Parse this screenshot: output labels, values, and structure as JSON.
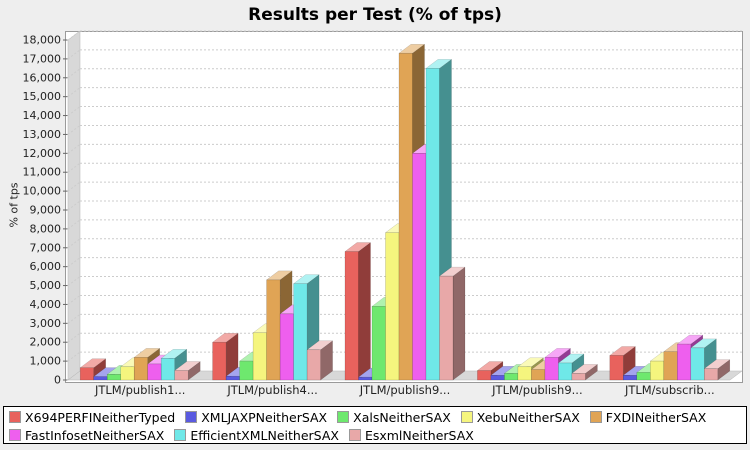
{
  "chart_data": {
    "type": "bar",
    "style_3d": true,
    "title": "Results per Test (% of tps)",
    "xlabel": "",
    "ylabel": "% of tps",
    "ylim": [
      0,
      18000
    ],
    "ytick_step": 1000,
    "grid": true,
    "legend_position": "bottom",
    "legend_rows": [
      5,
      3
    ],
    "background": "#eeeeee",
    "plot_background": "#ffffff",
    "wall_color": "#d8d8d8",
    "grid_color": "#cccccc",
    "categories": [
      "JTLM/publish1...",
      "JTLM/publish4...",
      "JTLM/publish9...",
      "JTLM/publish9...",
      "JTLM/subscrib..."
    ],
    "series": [
      {
        "name": "X694PERFINeitherTyped",
        "color": "#e8625d",
        "values": [
          650,
          2000,
          6800,
          500,
          1300
        ]
      },
      {
        "name": "XMLJAXPNeitherSAX",
        "color": "#5a5ae0",
        "values": [
          180,
          200,
          150,
          250,
          250
        ]
      },
      {
        "name": "XalsNeitherSAX",
        "color": "#6ee86e",
        "values": [
          300,
          1000,
          3900,
          350,
          400
        ]
      },
      {
        "name": "XebuNeitherSAX",
        "color": "#f5f57e",
        "values": [
          700,
          2500,
          7800,
          700,
          1000
        ]
      },
      {
        "name": "FXDINeitherSAX",
        "color": "#e0a455",
        "values": [
          1200,
          5300,
          17300,
          550,
          1500
        ]
      },
      {
        "name": "FastInfosetNeitherSAX",
        "color": "#ee5fee",
        "values": [
          850,
          3500,
          12000,
          1200,
          1900
        ]
      },
      {
        "name": "EfficientXMLNeitherSAX",
        "color": "#6fe8e8",
        "values": [
          1150,
          5100,
          16500,
          900,
          1700
        ]
      },
      {
        "name": "EsxmlNeitherSAX",
        "color": "#e8a8a8",
        "values": [
          500,
          1600,
          5500,
          350,
          600
        ]
      }
    ]
  }
}
